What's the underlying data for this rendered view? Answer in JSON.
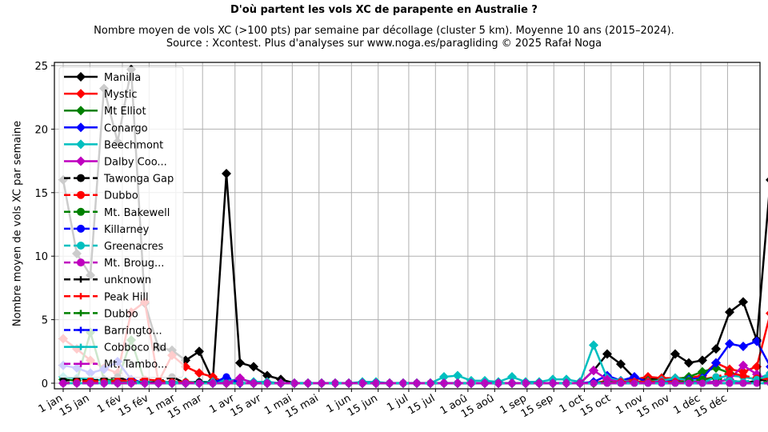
{
  "title": "D'où partent les vols XC de parapente en Australie ?",
  "subtitle_line1": "Nombre moyen de vols XC (>100 pts) par semaine par décollage (cluster 5 km). Moyenne 10 ans (2015–2024).",
  "subtitle_line2": "Source : Xcontest. Plus d'analyses sur www.noga.es/paragliding © 2025 Rafał Noga",
  "chart_data": {
    "type": "line",
    "title": "D'où partent les vols XC de parapente en Australie ?",
    "xlabel": "",
    "ylabel": "Nombre moyen de vols XC par semaine",
    "ylim": [
      0,
      25
    ],
    "yticks": [
      0,
      5,
      10,
      15,
      20,
      25
    ],
    "xticks": [
      "1 jan",
      "15 jan",
      "1 fév",
      "15 fév",
      "1 mar",
      "15 mar",
      "1 avr",
      "15 avr",
      "1 mai",
      "15 mai",
      "1 jun",
      "15 jun",
      "1 jul",
      "15 jul",
      "1 aoû",
      "15 aoû",
      "1 sep",
      "15 sep",
      "1 oct",
      "15 oct",
      "1 nov",
      "15 nov",
      "1 déc",
      "15 déc"
    ],
    "grid": true,
    "legend_position": "upper left",
    "x": "week 1..52",
    "series": [
      {
        "name": "Manilla",
        "color": "#000000",
        "dash": "solid",
        "marker": "diamond",
        "values": [
          16,
          10.2,
          8.5,
          23.2,
          19,
          24.7,
          6.3,
          2.8,
          2.6,
          1.8,
          2.5,
          0.2,
          16.5,
          1.6,
          1.3,
          0.6,
          0.3,
          0,
          0,
          0,
          0,
          0,
          0,
          0,
          0,
          0,
          0,
          0,
          0,
          0,
          0,
          0,
          0,
          0,
          0,
          0,
          0,
          0,
          0,
          1,
          2.3,
          1.5,
          0.4,
          0.3,
          0.4,
          2.3,
          1.6,
          1.8,
          2.7,
          5.6,
          6.4,
          3.4,
          16,
          1.4
        ]
      },
      {
        "name": "Mystic",
        "color": "#ff0000",
        "dash": "solid",
        "marker": "diamond",
        "values": [
          3.5,
          2.7,
          1.8,
          1.2,
          0.8,
          5.6,
          6.4,
          0.1,
          2.2,
          1.3,
          0.8,
          0.5,
          0,
          0,
          0,
          0,
          0,
          0,
          0,
          0,
          0,
          0,
          0,
          0,
          0,
          0,
          0,
          0,
          0,
          0,
          0,
          0,
          0,
          0,
          0,
          0,
          0,
          0,
          0,
          0,
          0.2,
          0.2,
          0.3,
          0.5,
          0.4,
          0.4,
          0.4,
          0.6,
          1.6,
          1.1,
          0.9,
          1.3,
          5.5
        ]
      },
      {
        "name": "Mt Elliot",
        "color": "#008000",
        "dash": "solid",
        "marker": "diamond",
        "values": [
          0.3,
          0.2,
          4,
          0.3,
          0.2,
          3.4,
          0.1,
          0,
          0,
          0,
          0,
          0,
          0,
          0,
          0,
          0,
          0,
          0,
          0,
          0,
          0,
          0,
          0,
          0,
          0,
          0,
          0,
          0,
          0,
          0,
          0,
          0,
          0,
          0,
          0,
          0,
          0,
          0,
          0,
          0,
          0.1,
          0.1,
          0.1,
          0.2,
          0.2,
          0.3,
          0.5,
          0.9,
          1.2,
          0.8,
          0.5,
          0.3,
          0.5
        ]
      },
      {
        "name": "Conargo",
        "color": "#0000ff",
        "dash": "solid",
        "marker": "diamond",
        "values": [
          1.4,
          1.2,
          0.8,
          1.1,
          1.7,
          0.3,
          0,
          0,
          0,
          0,
          0,
          0,
          0.4,
          0,
          0,
          0,
          0,
          0,
          0,
          0,
          0,
          0,
          0,
          0,
          0,
          0,
          0,
          0,
          0,
          0,
          0,
          0,
          0,
          0,
          0,
          0,
          0,
          0,
          0,
          0.1,
          0.6,
          0.2,
          0.5,
          0.1,
          0.1,
          0.2,
          0.3,
          0.4,
          1.6,
          3.1,
          2.9,
          3.3,
          1.3
        ]
      },
      {
        "name": "Beechmont",
        "color": "#00bfbf",
        "dash": "solid",
        "marker": "diamond",
        "values": [
          0.5,
          0.4,
          0.3,
          0.2,
          0.1,
          0.1,
          0.1,
          0.1,
          0.1,
          0.1,
          0.1,
          0.1,
          0.2,
          0.3,
          0.1,
          0.1,
          0,
          0,
          0,
          0,
          0,
          0,
          0.1,
          0.1,
          0,
          0,
          0,
          0,
          0.5,
          0.6,
          0.2,
          0.2,
          0.1,
          0.5,
          0.1,
          0.1,
          0.3,
          0.3,
          0.1,
          3,
          0.4,
          0.2,
          0.1,
          0.1,
          0.2,
          0.4,
          0.2,
          0.3,
          0.4,
          0.6,
          0.5,
          0.3,
          0.8
        ]
      },
      {
        "name": "Dalby Coo...",
        "color": "#bf00bf",
        "dash": "solid",
        "marker": "diamond",
        "values": [
          0,
          0,
          0,
          0,
          0,
          0,
          0,
          0,
          0,
          0,
          0,
          0,
          0,
          0.4,
          0,
          0,
          0,
          0,
          0,
          0,
          0,
          0,
          0,
          0,
          0,
          0,
          0,
          0,
          0,
          0,
          0,
          0,
          0,
          0,
          0,
          0,
          0,
          0,
          0,
          1,
          0.3,
          0.1,
          0.1,
          0.1,
          0.1,
          0.1,
          0.1,
          0.1,
          0.1,
          0.3,
          1.4,
          0.7,
          0.2
        ]
      },
      {
        "name": "Tawonga Gap",
        "color": "#000000",
        "dash": "dashed",
        "marker": "circle",
        "values": [
          0.2,
          0.3,
          0.2,
          0.3,
          0.5,
          0.1,
          0,
          0.1,
          0.5,
          0,
          0.1,
          0,
          0,
          0,
          0,
          0,
          0,
          0,
          0,
          0,
          0,
          0,
          0,
          0,
          0,
          0,
          0,
          0,
          0,
          0,
          0,
          0,
          0,
          0,
          0,
          0,
          0,
          0,
          0,
          0,
          0,
          0,
          0,
          0,
          0,
          0,
          0,
          0,
          0,
          0,
          0,
          0.2,
          0.3
        ]
      },
      {
        "name": "Dubbo",
        "color": "#ff0000",
        "dash": "dashed",
        "marker": "circle",
        "values": [
          0,
          0.1,
          0.2,
          0.1,
          0.2,
          0.2,
          0.3,
          0.2,
          0.1,
          0.1,
          0,
          0,
          0,
          0,
          0,
          0,
          0,
          0,
          0,
          0,
          0,
          0,
          0,
          0,
          0,
          0,
          0,
          0,
          0,
          0,
          0,
          0,
          0,
          0,
          0,
          0,
          0,
          0,
          0,
          0,
          0,
          0.1,
          0.1,
          0.1,
          0.1,
          0.1,
          0.2,
          0.3,
          0.5,
          0.8,
          0.6,
          0.4,
          0.3
        ]
      },
      {
        "name": "Mt. Bakewell",
        "color": "#008000",
        "dash": "dashed",
        "marker": "circle",
        "values": [
          0,
          0,
          0,
          0,
          0,
          0,
          0,
          0,
          0,
          0,
          0,
          0,
          0,
          0,
          0,
          0,
          0,
          0,
          0,
          0,
          0,
          0,
          0,
          0,
          0,
          0,
          0,
          0,
          0,
          0,
          0,
          0,
          0,
          0,
          0,
          0,
          0,
          0,
          0,
          0,
          0,
          0,
          0,
          0,
          0,
          0,
          0.2,
          0.3,
          0.4,
          0.2,
          0.1,
          0.1,
          0.1
        ]
      },
      {
        "name": "Killarney",
        "color": "#0000ff",
        "dash": "dashed",
        "marker": "circle",
        "values": [
          0,
          0,
          0,
          0,
          0,
          0,
          0,
          0,
          0,
          0,
          0,
          0,
          0.5,
          0,
          0,
          0,
          0,
          0,
          0,
          0,
          0,
          0,
          0,
          0,
          0,
          0,
          0,
          0,
          0,
          0,
          0,
          0,
          0,
          0,
          0,
          0,
          0,
          0,
          0,
          0,
          0,
          0,
          0,
          0,
          0,
          0,
          0,
          0,
          0,
          0,
          0,
          0,
          0
        ]
      },
      {
        "name": "Greenacres",
        "color": "#00bfbf",
        "dash": "dashed",
        "marker": "circle",
        "values": [
          0,
          0,
          0,
          0,
          0,
          0,
          0,
          0,
          0,
          0,
          0,
          0,
          0,
          0,
          0,
          0,
          0,
          0,
          0,
          0,
          0,
          0,
          0,
          0,
          0,
          0,
          0,
          0,
          0,
          0,
          0,
          0,
          0,
          0,
          0,
          0,
          0,
          0,
          0,
          0,
          0,
          0,
          0,
          0,
          0,
          0,
          0,
          0,
          0.5,
          0.2,
          0.1,
          0.3,
          0.6
        ]
      },
      {
        "name": "Mt. Broug...",
        "color": "#bf00bf",
        "dash": "dashed",
        "marker": "circle",
        "values": [
          0,
          0,
          0,
          0,
          0,
          0,
          0,
          0,
          0,
          0,
          0,
          0,
          0,
          0,
          0,
          0,
          0,
          0,
          0,
          0,
          0,
          0,
          0,
          0,
          0,
          0,
          0,
          0,
          0,
          0,
          0,
          0,
          0,
          0,
          0,
          0,
          0,
          0,
          0,
          0,
          0,
          0,
          0,
          0,
          0,
          0,
          0,
          0,
          0,
          0,
          0,
          0,
          0
        ]
      },
      {
        "name": "unknown",
        "color": "#000000",
        "dash": "dashed",
        "marker": "plus",
        "values": [
          0,
          0,
          0,
          0,
          0,
          0,
          0,
          0,
          0,
          0,
          0,
          0,
          0,
          0,
          0,
          0,
          0,
          0,
          0,
          0,
          0,
          0,
          0,
          0,
          0,
          0,
          0,
          0,
          0,
          0,
          0,
          0,
          0,
          0,
          0,
          0,
          0,
          0,
          0,
          0,
          0,
          0,
          0,
          0,
          0,
          0,
          0,
          0,
          0,
          0,
          0,
          0,
          0
        ]
      },
      {
        "name": "Peak Hill",
        "color": "#ff0000",
        "dash": "dashed",
        "marker": "plus",
        "values": [
          0,
          0,
          0,
          0,
          0,
          0,
          0,
          0,
          0,
          0,
          0,
          0,
          0,
          0,
          0,
          0,
          0,
          0,
          0,
          0,
          0,
          0,
          0,
          0,
          0,
          0,
          0,
          0,
          0,
          0,
          0,
          0,
          0,
          0,
          0,
          0,
          0,
          0,
          0,
          0,
          0,
          0,
          0,
          0,
          0,
          0,
          0,
          0,
          0,
          0,
          0,
          0,
          0
        ]
      },
      {
        "name": "Dubbo",
        "color": "#008000",
        "dash": "dashed",
        "marker": "plus",
        "values": [
          0,
          0,
          0,
          0,
          0,
          0,
          0,
          0,
          0,
          0,
          0,
          0,
          0,
          0,
          0,
          0,
          0,
          0,
          0,
          0,
          0,
          0,
          0,
          0,
          0,
          0,
          0,
          0,
          0,
          0,
          0,
          0,
          0,
          0,
          0,
          0,
          0,
          0,
          0,
          0,
          0,
          0,
          0,
          0,
          0,
          0,
          0,
          0,
          0,
          0,
          0,
          0,
          0
        ]
      },
      {
        "name": "Barringto...",
        "color": "#0000ff",
        "dash": "dashed",
        "marker": "plus",
        "values": [
          0,
          0,
          0,
          0,
          0,
          0,
          0,
          0,
          0,
          0,
          0,
          0,
          0,
          0,
          0,
          0,
          0,
          0,
          0,
          0,
          0,
          0,
          0,
          0,
          0,
          0,
          0,
          0,
          0,
          0,
          0,
          0,
          0,
          0,
          0,
          0,
          0,
          0,
          0,
          0,
          0,
          0,
          0,
          0,
          0,
          0,
          0,
          0,
          0,
          0,
          0,
          0,
          0
        ]
      },
      {
        "name": "Cobboco Rd",
        "color": "#00bfbf",
        "dash": "solid",
        "marker": "plus",
        "values": [
          0,
          0,
          0,
          0,
          0,
          0,
          0,
          0,
          0,
          0,
          0,
          0,
          0,
          0,
          0,
          0,
          0,
          0,
          0,
          0,
          0,
          0,
          0,
          0,
          0,
          0,
          0,
          0,
          0,
          0,
          0,
          0,
          0,
          0,
          0,
          0,
          0,
          0,
          0,
          0,
          0,
          0,
          0,
          0,
          0,
          0,
          0,
          0,
          0,
          0,
          0,
          0,
          0
        ]
      },
      {
        "name": "Mt. Tambo...",
        "color": "#bf00bf",
        "dash": "dashed",
        "marker": "plus",
        "values": [
          0,
          0,
          0,
          0,
          0,
          0,
          0,
          0,
          0,
          0,
          0,
          0,
          0,
          0,
          0,
          0,
          0,
          0,
          0,
          0,
          0,
          0,
          0,
          0,
          0,
          0,
          0,
          0,
          0,
          0,
          0,
          0,
          0,
          0,
          0,
          0,
          0,
          0,
          0,
          0,
          0,
          0,
          0,
          0,
          0,
          0,
          0,
          0,
          0,
          0,
          0,
          0,
          0
        ]
      }
    ]
  }
}
